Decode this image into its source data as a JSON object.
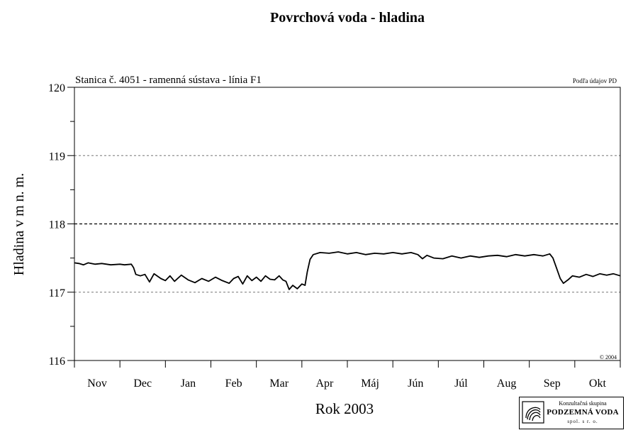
{
  "chart_data": {
    "type": "line",
    "title": "Povrchová voda - hladina",
    "subtitle": "Stanica č. 4051 - ramenná sústava - línia F1",
    "source_note": "Podľa údajov PD",
    "copyright": "© 2004",
    "xlabel": "Rok 2003",
    "ylabel": "Hladina v m n. m.",
    "ylim": [
      116,
      120
    ],
    "yticks": [
      116,
      117,
      118,
      119,
      120
    ],
    "grid_lines": [
      {
        "y": 117,
        "style": "dashed"
      },
      {
        "y": 118,
        "style": "dashed-dark"
      },
      {
        "y": 119,
        "style": "dashed"
      }
    ],
    "months": [
      "Nov",
      "Dec",
      "Jan",
      "Feb",
      "Mar",
      "Apr",
      "Máj",
      "Jún",
      "Júl",
      "Aug",
      "Sep",
      "Okt"
    ],
    "x_range_months": [
      0,
      12
    ],
    "series": [
      {
        "values": [
          [
            0.0,
            117.43
          ],
          [
            0.1,
            117.42
          ],
          [
            0.2,
            117.4
          ],
          [
            0.3,
            117.43
          ],
          [
            0.45,
            117.41
          ],
          [
            0.6,
            117.42
          ],
          [
            0.8,
            117.4
          ],
          [
            1.0,
            117.41
          ],
          [
            1.1,
            117.4
          ],
          [
            1.25,
            117.41
          ],
          [
            1.3,
            117.36
          ],
          [
            1.35,
            117.26
          ],
          [
            1.45,
            117.24
          ],
          [
            1.55,
            117.26
          ],
          [
            1.65,
            117.15
          ],
          [
            1.75,
            117.27
          ],
          [
            1.9,
            117.2
          ],
          [
            2.0,
            117.17
          ],
          [
            2.1,
            117.24
          ],
          [
            2.2,
            117.16
          ],
          [
            2.35,
            117.25
          ],
          [
            2.5,
            117.18
          ],
          [
            2.65,
            117.14
          ],
          [
            2.8,
            117.2
          ],
          [
            2.95,
            117.16
          ],
          [
            3.1,
            117.22
          ],
          [
            3.25,
            117.17
          ],
          [
            3.4,
            117.13
          ],
          [
            3.5,
            117.2
          ],
          [
            3.6,
            117.23
          ],
          [
            3.7,
            117.12
          ],
          [
            3.8,
            117.24
          ],
          [
            3.9,
            117.17
          ],
          [
            4.0,
            117.22
          ],
          [
            4.1,
            117.16
          ],
          [
            4.2,
            117.24
          ],
          [
            4.3,
            117.19
          ],
          [
            4.4,
            117.18
          ],
          [
            4.5,
            117.24
          ],
          [
            4.58,
            117.18
          ],
          [
            4.65,
            117.16
          ],
          [
            4.72,
            117.04
          ],
          [
            4.8,
            117.1
          ],
          [
            4.9,
            117.05
          ],
          [
            5.0,
            117.12
          ],
          [
            5.07,
            117.1
          ],
          [
            5.12,
            117.3
          ],
          [
            5.18,
            117.48
          ],
          [
            5.25,
            117.55
          ],
          [
            5.4,
            117.58
          ],
          [
            5.6,
            117.57
          ],
          [
            5.8,
            117.59
          ],
          [
            6.0,
            117.56
          ],
          [
            6.2,
            117.58
          ],
          [
            6.4,
            117.55
          ],
          [
            6.6,
            117.57
          ],
          [
            6.8,
            117.56
          ],
          [
            7.0,
            117.58
          ],
          [
            7.2,
            117.56
          ],
          [
            7.4,
            117.58
          ],
          [
            7.55,
            117.55
          ],
          [
            7.65,
            117.49
          ],
          [
            7.75,
            117.54
          ],
          [
            7.9,
            117.5
          ],
          [
            8.1,
            117.49
          ],
          [
            8.3,
            117.53
          ],
          [
            8.5,
            117.5
          ],
          [
            8.7,
            117.53
          ],
          [
            8.9,
            117.51
          ],
          [
            9.1,
            117.53
          ],
          [
            9.3,
            117.54
          ],
          [
            9.5,
            117.52
          ],
          [
            9.7,
            117.55
          ],
          [
            9.9,
            117.53
          ],
          [
            10.1,
            117.55
          ],
          [
            10.3,
            117.53
          ],
          [
            10.45,
            117.56
          ],
          [
            10.52,
            117.5
          ],
          [
            10.6,
            117.35
          ],
          [
            10.68,
            117.2
          ],
          [
            10.75,
            117.13
          ],
          [
            10.85,
            117.18
          ],
          [
            10.95,
            117.24
          ],
          [
            11.1,
            117.22
          ],
          [
            11.25,
            117.26
          ],
          [
            11.4,
            117.23
          ],
          [
            11.55,
            117.27
          ],
          [
            11.7,
            117.25
          ],
          [
            11.85,
            117.27
          ],
          [
            12.0,
            117.24
          ]
        ]
      }
    ]
  },
  "company": {
    "line1": "Konzultačná skupina",
    "line2": "PODZEMNÁ VODA",
    "line3": "spol. s r. o."
  }
}
